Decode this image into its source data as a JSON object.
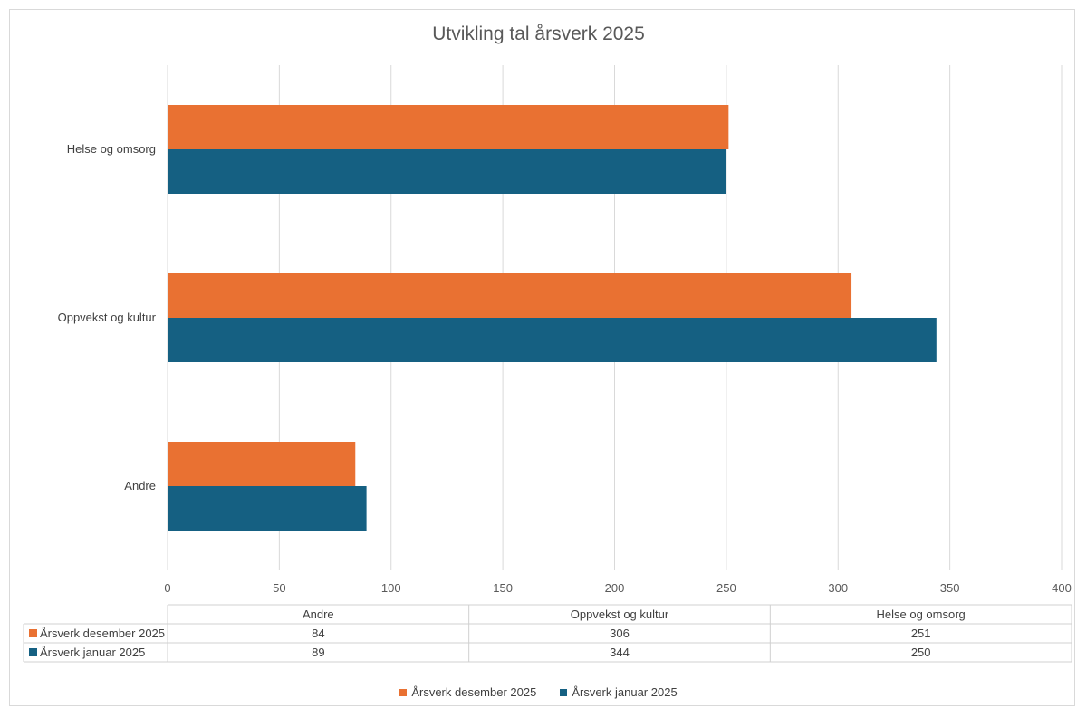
{
  "chart_data": {
    "type": "bar",
    "orientation": "horizontal",
    "title": "Utvikling tal årsverk 2025",
    "categories": [
      "Andre",
      "Oppvekst og kultur",
      "Helse og omsorg"
    ],
    "series": [
      {
        "name": "Årsverk desember 2025",
        "values": [
          84,
          306,
          251
        ],
        "color": "#e97132"
      },
      {
        "name": "Årsverk januar 2025",
        "values": [
          89,
          344,
          250
        ],
        "color": "#156082"
      }
    ],
    "xlim": [
      0,
      400
    ],
    "xticks": [
      0,
      50,
      100,
      150,
      200,
      250,
      300,
      350,
      400
    ],
    "grid": true,
    "data_table": true,
    "legend_position": "bottom"
  }
}
